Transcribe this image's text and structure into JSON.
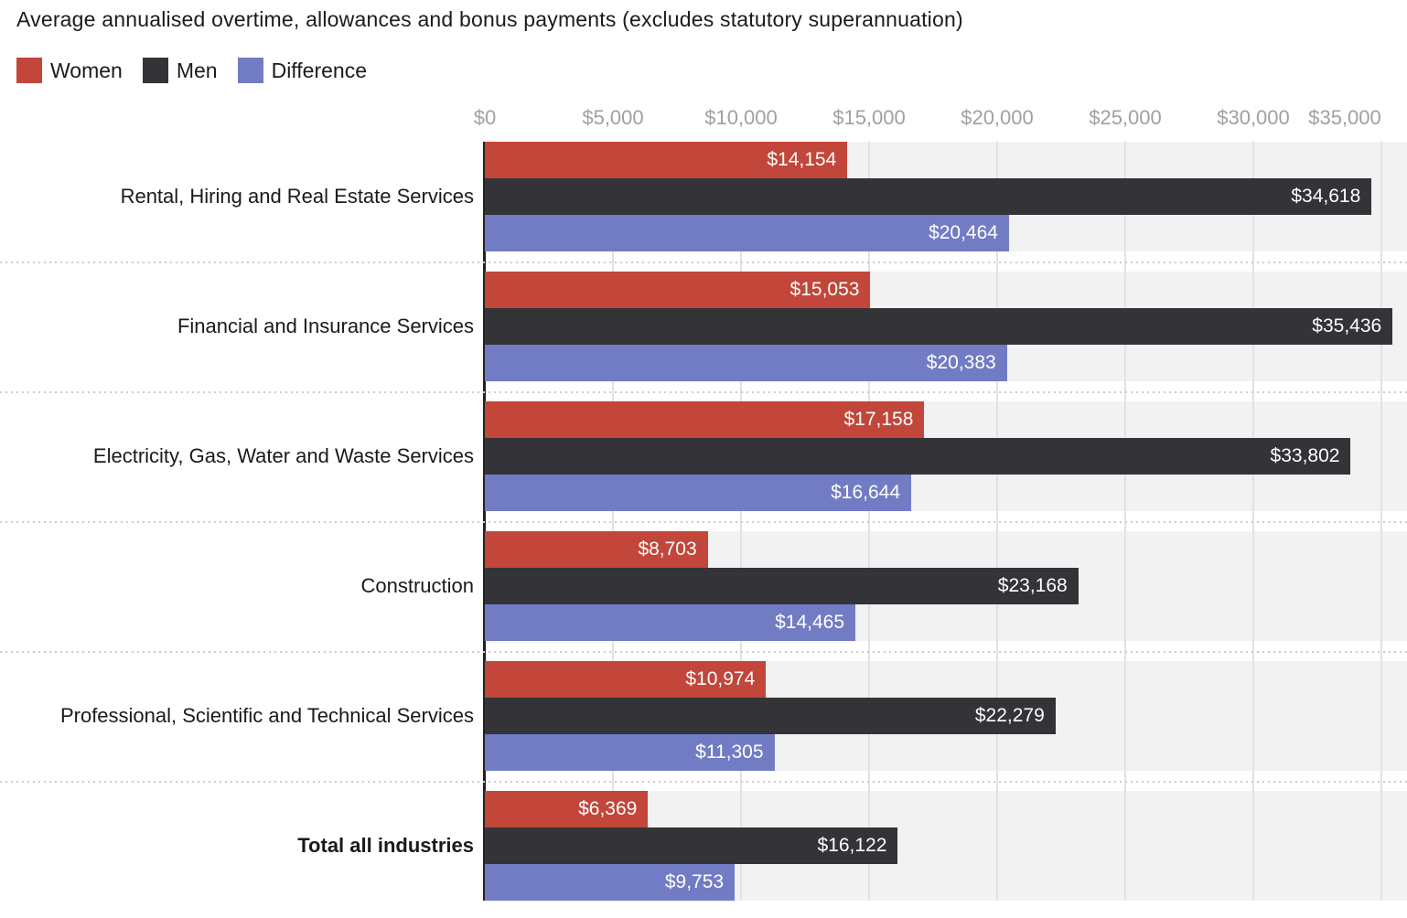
{
  "header": {
    "title": "Average annualised overtime, allowances and bonus payments (excludes statutory superannuation)"
  },
  "legend": [
    {
      "name": "women",
      "label": "Women",
      "color": "#c2463a"
    },
    {
      "name": "men",
      "label": "Men",
      "color": "#333338"
    },
    {
      "name": "difference",
      "label": "Difference",
      "color": "#727cc4"
    }
  ],
  "chart_data": {
    "type": "bar",
    "orientation": "horizontal",
    "title": "Average annualised overtime, allowances and bonus payments (excludes statutory superannuation)",
    "categories": [
      "Rental, Hiring and Real Estate Services",
      "Financial and Insurance Services",
      "Electricity, Gas, Water and Waste Services",
      "Construction",
      "Professional, Scientific and Technical Services",
      "Total all industries"
    ],
    "category_emphasis": [
      false,
      false,
      false,
      false,
      false,
      true
    ],
    "series": [
      {
        "name": "Women",
        "color": "#c2463a",
        "values": [
          14154,
          15053,
          17158,
          8703,
          10974,
          6369
        ],
        "value_labels": [
          "$14,154",
          "$15,053",
          "$17,158",
          "$8,703",
          "$10,974",
          "$6,369"
        ]
      },
      {
        "name": "Men",
        "color": "#333338",
        "values": [
          34618,
          35436,
          33802,
          23168,
          22279,
          16122
        ],
        "value_labels": [
          "$34,618",
          "$35,436",
          "$33,802",
          "$23,168",
          "$22,279",
          "$16,122"
        ]
      },
      {
        "name": "Difference",
        "color": "#727cc4",
        "values": [
          20464,
          20383,
          16644,
          14465,
          11305,
          9753
        ],
        "value_labels": [
          "$20,464",
          "$20,383",
          "$16,644",
          "$14,465",
          "$11,305",
          "$9,753"
        ]
      }
    ],
    "x_axis": {
      "min": 0,
      "max": 36000,
      "tick_values": [
        0,
        5000,
        10000,
        15000,
        20000,
        25000,
        30000,
        35000
      ],
      "tick_labels": [
        "$0",
        "$5,000",
        "$10,000",
        "$15,000",
        "$20,000",
        "$25,000",
        "$30,000",
        "$35,000"
      ]
    },
    "grid": true,
    "legend_position": "top-left",
    "value_labels_position": "inside-end",
    "colors": {
      "plot_track": "#f2f2f2",
      "gridline": "#e2e2e2",
      "zero_axis": "#222222",
      "separator_dots": "#cbcbcb",
      "tick_text": "#a0a0a0",
      "category_text": "#1a1a1a",
      "value_text": "#ffffff"
    }
  }
}
